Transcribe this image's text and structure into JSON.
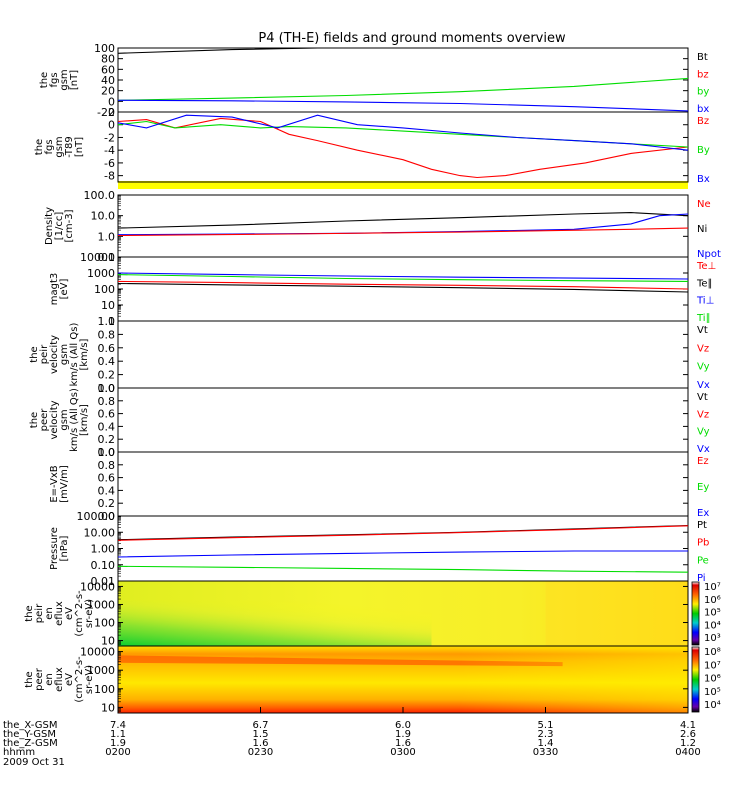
{
  "page": {
    "title": "P4 (TH-E) fields and ground moments overview"
  },
  "colors": {
    "black": "#000000",
    "red": "#ff0000",
    "green": "#00dd00",
    "blue": "#0000ff",
    "yellow": "#ffff00"
  },
  "chart_data": [
    {
      "id": "fgs_gsm",
      "type": "line",
      "ylabel_lines": [
        "the",
        "fgs",
        "gsm",
        "[nT]"
      ],
      "ylim": [
        -20,
        100
      ],
      "yticks": [
        100,
        80,
        60,
        40,
        20,
        0,
        -20
      ],
      "legend": [
        {
          "text": "Bt",
          "color": "#000000"
        },
        {
          "text": "bz",
          "color": "#ff0000"
        },
        {
          "text": "by",
          "color": "#00dd00"
        },
        {
          "text": "bx",
          "color": "#0000ff"
        }
      ],
      "series": [
        {
          "name": "Bt",
          "color": "#000000",
          "x": [
            0,
            0.2,
            0.35,
            1.0
          ],
          "y": [
            90,
            97,
            102,
            130
          ]
        },
        {
          "name": "by",
          "color": "#00dd00",
          "x": [
            0,
            0.2,
            0.4,
            0.6,
            0.8,
            1.0
          ],
          "y": [
            2,
            6,
            11,
            18,
            28,
            43
          ]
        },
        {
          "name": "bx",
          "color": "#0000ff",
          "x": [
            0,
            0.2,
            0.4,
            0.6,
            0.8,
            1.0
          ],
          "y": [
            2,
            1,
            -1,
            -4,
            -10,
            -18
          ]
        }
      ]
    },
    {
      "id": "fgs_t89",
      "type": "line",
      "ylabel_lines": [
        "the",
        "fgs",
        "gsm",
        "-T89",
        "[nT]"
      ],
      "ylim": [
        -9,
        2
      ],
      "yticks": [
        2,
        0,
        -2,
        -4,
        -6,
        -8
      ],
      "legend": [
        {
          "text": "Bz",
          "color": "#ff0000"
        },
        {
          "text": "By",
          "color": "#00dd00"
        },
        {
          "text": "Bx",
          "color": "#0000ff"
        }
      ],
      "series": [
        {
          "name": "Bz",
          "color": "#ff0000",
          "x": [
            0,
            0.05,
            0.1,
            0.18,
            0.25,
            0.3,
            0.35,
            0.42,
            0.5,
            0.55,
            0.6,
            0.63,
            0.68,
            0.74,
            0.82,
            0.9,
            1.0
          ],
          "y": [
            0.5,
            0.8,
            -0.5,
            1,
            0.5,
            -1.5,
            -2.5,
            -4,
            -5.5,
            -7,
            -8,
            -8.3,
            -8,
            -7,
            -6,
            -4.5,
            -3.5
          ]
        },
        {
          "name": "By",
          "color": "#00dd00",
          "x": [
            0,
            0.05,
            0.1,
            0.18,
            0.25,
            0.3,
            0.4,
            0.5,
            0.6,
            0.7,
            0.8,
            0.9,
            1.0
          ],
          "y": [
            0,
            0.5,
            -0.5,
            0,
            -0.5,
            -0.3,
            -0.5,
            -1,
            -1.5,
            -2,
            -2.5,
            -3,
            -3.5
          ]
        },
        {
          "name": "Bx",
          "color": "#0000ff",
          "x": [
            0,
            0.05,
            0.12,
            0.2,
            0.28,
            0.35,
            0.42,
            0.5,
            0.6,
            0.7,
            0.8,
            0.9,
            1.0
          ],
          "y": [
            0.3,
            -0.5,
            1.5,
            1.2,
            -0.5,
            1.5,
            0,
            -0.5,
            -1.3,
            -2,
            -2.5,
            -3,
            -4
          ]
        }
      ]
    },
    {
      "id": "density",
      "type": "line",
      "yscale": "log",
      "ylabel_lines": [
        "Density",
        "[1/cc]",
        "[cm-3]"
      ],
      "ylim": [
        0.1,
        100
      ],
      "ytick_labels": [
        "100.0",
        "10.0",
        "1.0",
        "0.1"
      ],
      "yticks": [
        100,
        10,
        1,
        0.1
      ],
      "legend": [
        {
          "text": "Ne",
          "color": "#ff0000"
        },
        {
          "text": "Ni",
          "color": "#000000"
        },
        {
          "text": "Npot",
          "color": "#0000ff"
        }
      ],
      "series": [
        {
          "name": "Ni",
          "color": "#000000",
          "x": [
            0,
            0.2,
            0.4,
            0.6,
            0.8,
            0.9,
            1.0
          ],
          "y": [
            2.5,
            3.5,
            5.5,
            8,
            12,
            14,
            10
          ]
        },
        {
          "name": "Npot",
          "color": "#0000ff",
          "x": [
            0,
            0.2,
            0.4,
            0.6,
            0.8,
            0.9,
            0.95,
            1.0
          ],
          "y": [
            1.2,
            1.3,
            1.4,
            1.7,
            2.2,
            4,
            10,
            12
          ]
        },
        {
          "name": "Ne",
          "color": "#ff0000",
          "x": [
            0,
            0.3,
            0.6,
            0.9,
            1.0
          ],
          "y": [
            1.1,
            1.3,
            1.6,
            2.2,
            2.5
          ]
        }
      ]
    },
    {
      "id": "temperature",
      "type": "line",
      "yscale": "log",
      "ylabel_lines": [
        "magt3",
        "[eV]"
      ],
      "ylim": [
        1,
        10000
      ],
      "ytick_labels": [
        "10000",
        "1000",
        "100",
        "10",
        "1"
      ],
      "yticks": [
        10000,
        1000,
        100,
        10,
        1
      ],
      "legend": [
        {
          "text": "Te⊥",
          "color": "#ff0000"
        },
        {
          "text": "Te∥",
          "color": "#000000"
        },
        {
          "text": "Ti⊥",
          "color": "#0000ff"
        },
        {
          "text": "Ti∥",
          "color": "#00dd00"
        }
      ],
      "series": [
        {
          "name": "Ti⊥",
          "color": "#0000ff",
          "x": [
            0,
            0.2,
            0.4,
            0.6,
            0.8,
            1.0
          ],
          "y": [
            1000,
            800,
            650,
            550,
            480,
            420
          ]
        },
        {
          "name": "Ti∥",
          "color": "#00dd00",
          "x": [
            0,
            0.2,
            0.4,
            0.6,
            0.8,
            1.0
          ],
          "y": [
            800,
            600,
            450,
            380,
            330,
            300
          ]
        },
        {
          "name": "Te⊥",
          "color": "#ff0000",
          "x": [
            0,
            0.2,
            0.4,
            0.6,
            0.8,
            1.0
          ],
          "y": [
            300,
            250,
            200,
            170,
            140,
            100
          ]
        },
        {
          "name": "Te∥",
          "color": "#000000",
          "x": [
            0,
            0.2,
            0.4,
            0.6,
            0.8,
            1.0
          ],
          "y": [
            220,
            180,
            150,
            120,
            95,
            65
          ]
        }
      ]
    },
    {
      "id": "peir_velocity",
      "type": "line",
      "ylabel_lines": [
        "the",
        "peir",
        "velocity",
        "gsm",
        "km/s (All Qs)",
        "[km/s]"
      ],
      "ylim": [
        0,
        1
      ],
      "yticks": [
        1.0,
        0.8,
        0.6,
        0.4,
        0.2,
        0.0
      ],
      "ytick_labels": [
        "1.0",
        "0.8",
        "0.6",
        "0.4",
        "0.2",
        "0.0"
      ],
      "legend": [
        {
          "text": "Vt",
          "color": "#000000"
        },
        {
          "text": "Vz",
          "color": "#ff0000"
        },
        {
          "text": "Vy",
          "color": "#00dd00"
        },
        {
          "text": "Vx",
          "color": "#0000ff"
        }
      ],
      "series": []
    },
    {
      "id": "peer_velocity",
      "type": "line",
      "ylabel_lines": [
        "the",
        "peer",
        "velocity",
        "gsm",
        "km/s (All Qs)",
        "[km/s]"
      ],
      "ylim": [
        0,
        1
      ],
      "yticks": [
        1.0,
        0.8,
        0.6,
        0.4,
        0.2,
        0.0
      ],
      "ytick_labels": [
        "1.0",
        "0.8",
        "0.6",
        "0.4",
        "0.2",
        "0.0"
      ],
      "legend": [
        {
          "text": "Vt",
          "color": "#000000"
        },
        {
          "text": "Vz",
          "color": "#ff0000"
        },
        {
          "text": "Vy",
          "color": "#00dd00"
        },
        {
          "text": "Vx",
          "color": "#0000ff"
        }
      ],
      "series": []
    },
    {
      "id": "efield",
      "type": "line",
      "ylabel_lines": [
        "E=-VxB",
        "[mV/m]"
      ],
      "ylim": [
        0,
        1
      ],
      "yticks": [
        1.0,
        0.8,
        0.6,
        0.4,
        0.2,
        0.0
      ],
      "ytick_labels": [
        "1.0",
        "0.8",
        "0.6",
        "0.4",
        "0.2",
        "0.0"
      ],
      "legend": [
        {
          "text": "Ez",
          "color": "#ff0000"
        },
        {
          "text": "Ey",
          "color": "#00dd00"
        },
        {
          "text": "Ex",
          "color": "#0000ff"
        }
      ],
      "series": []
    },
    {
      "id": "pressure",
      "type": "line",
      "yscale": "log",
      "ylabel_lines": [
        "Pressure",
        "[nPa]"
      ],
      "ylim": [
        0.01,
        100
      ],
      "yticks": [
        100,
        10,
        1,
        0.1,
        0.01
      ],
      "ytick_labels": [
        "100.00",
        "10.00",
        "1.00",
        "0.10",
        "0.01"
      ],
      "legend": [
        {
          "text": "Pt",
          "color": "#000000"
        },
        {
          "text": "Pb",
          "color": "#ff0000"
        },
        {
          "text": "Pe",
          "color": "#00dd00"
        },
        {
          "text": "Pi",
          "color": "#0000ff"
        }
      ],
      "series": [
        {
          "name": "Pt",
          "color": "#000000",
          "x": [
            0,
            0.2,
            0.4,
            0.6,
            0.8,
            1.0
          ],
          "y": [
            3.5,
            5,
            7,
            10,
            16,
            26
          ]
        },
        {
          "name": "Pb",
          "color": "#ff0000",
          "x": [
            0,
            0.2,
            0.4,
            0.6,
            0.8,
            1.0
          ],
          "y": [
            3.2,
            4.6,
            6.5,
            9.5,
            15,
            25
          ]
        },
        {
          "name": "Pi",
          "color": "#0000ff",
          "x": [
            0,
            0.2,
            0.4,
            0.6,
            0.8,
            1.0
          ],
          "y": [
            0.3,
            0.4,
            0.5,
            0.6,
            0.7,
            0.7
          ]
        },
        {
          "name": "Pe",
          "color": "#00dd00",
          "x": [
            0,
            0.2,
            0.4,
            0.6,
            0.8,
            1.0
          ],
          "y": [
            0.08,
            0.07,
            0.06,
            0.05,
            0.04,
            0.035
          ]
        }
      ]
    },
    {
      "id": "peir_spec",
      "type": "heatmap",
      "yscale": "log",
      "ylabel_lines": [
        "the",
        "peir",
        "en",
        "eflux",
        "eV",
        "(cm^2-s-",
        "sr-eV)"
      ],
      "ylim": [
        5,
        20000
      ],
      "yticks": [
        10000,
        1000,
        100,
        10
      ],
      "ytick_labels": [
        "10000",
        "1000",
        "100",
        "10"
      ],
      "colorbar": {
        "labels": [
          "10⁷",
          "10⁶",
          "10⁵",
          "10⁴",
          "10³"
        ]
      }
    },
    {
      "id": "peer_spec",
      "type": "heatmap",
      "yscale": "log",
      "ylabel_lines": [
        "the",
        "peer",
        "en",
        "eflux",
        "eV",
        "(cm^2-s-",
        "sr-eV)"
      ],
      "ylim": [
        5,
        20000
      ],
      "yticks": [
        10000,
        1000,
        100,
        10
      ],
      "ytick_labels": [
        "10000",
        "1000",
        "100",
        "10"
      ],
      "colorbar": {
        "labels": [
          "10⁸",
          "10⁷",
          "10⁶",
          "10⁵",
          "10⁴"
        ]
      }
    }
  ],
  "xaxis": {
    "rows": [
      {
        "label": "the_X-GSM",
        "values": [
          "7.4",
          "6.7",
          "6.0",
          "5.1",
          "4.1"
        ]
      },
      {
        "label": "the_Y-GSM",
        "values": [
          "1.1",
          "1.5",
          "1.9",
          "2.3",
          "2.6"
        ]
      },
      {
        "label": "the_Z-GSM",
        "values": [
          "1.9",
          "1.6",
          "1.6",
          "1.4",
          "1.2"
        ]
      },
      {
        "label": "hhmm",
        "values": [
          "0200",
          "0230",
          "0300",
          "0330",
          "0400"
        ]
      }
    ],
    "date": "2009 Oct 31"
  }
}
